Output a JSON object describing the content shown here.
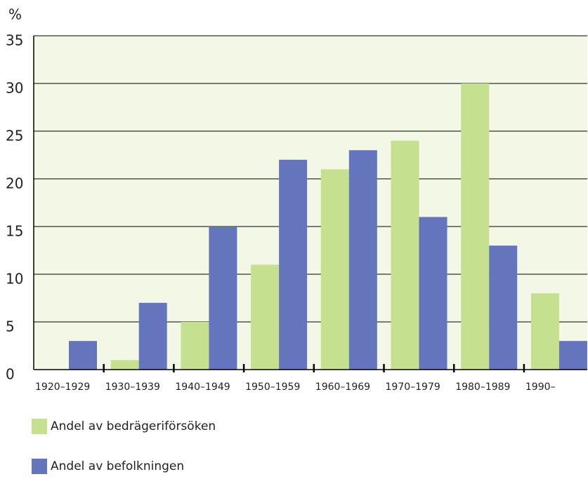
{
  "chart_data": {
    "type": "bar",
    "y_label": "%",
    "categories": [
      "1920–1929",
      "1930–1939",
      "1940–1949",
      "1950–1959",
      "1960–1969",
      "1970–1979",
      "1980–1989",
      "1990–"
    ],
    "series": [
      {
        "name": "Andel av bedrägeriförsöken",
        "color": "#c5e08f",
        "values": [
          0,
          1,
          5,
          11,
          21,
          24,
          30,
          8
        ]
      },
      {
        "name": "Andel av befolkningen",
        "color": "#6475bd",
        "values": [
          3,
          7,
          15,
          22,
          23,
          16,
          13,
          3
        ]
      }
    ],
    "ylim": [
      0,
      35
    ],
    "yticks": [
      0,
      5,
      10,
      15,
      20,
      25,
      30,
      35
    ],
    "grid": true
  }
}
